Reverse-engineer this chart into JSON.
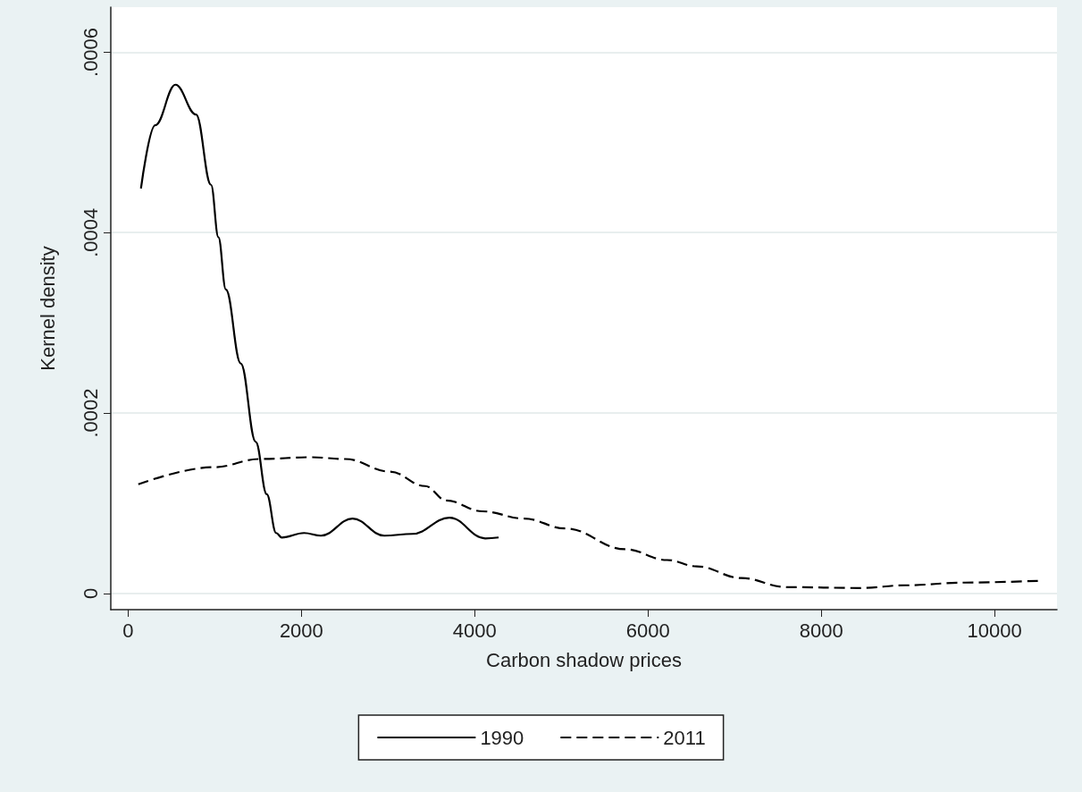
{
  "chart_data": {
    "type": "line",
    "xlabel": "Carbon shadow prices",
    "ylabel": "Kernel density",
    "xlim": [
      -200,
      10720
    ],
    "xticks": [
      0,
      2000,
      4000,
      6000,
      8000,
      10000
    ],
    "ylim": [
      -1.8e-05,
      0.00065
    ],
    "yticks": [
      0,
      {
        "value": 0.0002,
        "label": ".0002"
      },
      {
        "value": 0.0004,
        "label": ".0004"
      },
      {
        "value": 0.0006,
        "label": ".0006"
      }
    ],
    "grid": "y",
    "legend": "bottom",
    "marker": "none",
    "series": [
      {
        "name": "1990",
        "color": "#000000",
        "line_style": "solid",
        "x": [
          148,
          312,
          547,
          784,
          957,
          1042,
          1128,
          1300,
          1473,
          1600,
          1709,
          1773,
          2031,
          2225,
          2590,
          2956,
          3279,
          3708,
          4121,
          4276
        ],
        "values": [
          0.000449,
          0.000519,
          0.000564,
          0.000531,
          0.000453,
          0.000395,
          0.000337,
          0.000255,
          0.000168,
          0.00011,
          6.7e-05,
          6.2e-05,
          6.7e-05,
          6.4e-05,
          8.3e-05,
          6.4e-05,
          6.6e-05,
          8.4e-05,
          6.1e-05,
          6.2e-05
        ]
      },
      {
        "name": "2011",
        "color": "#000000",
        "line_style": "dashed",
        "x": [
          118,
          999,
          1515,
          2116,
          2505,
          3021,
          3426,
          3674,
          4087,
          4569,
          5046,
          5738,
          6220,
          6563,
          7079,
          7595,
          8455,
          8968,
          9659,
          10516
        ],
        "values": [
          0.000121,
          0.00014,
          0.000149,
          0.000151,
          0.000149,
          0.000135,
          0.000119,
          0.000103,
          9.1e-05,
          8.3e-05,
          7.2e-05,
          4.9e-05,
          3.7e-05,
          3e-05,
          1.7e-05,
          7e-06,
          6e-06,
          9e-06,
          1.2e-05,
          1.4e-05
        ]
      }
    ]
  }
}
